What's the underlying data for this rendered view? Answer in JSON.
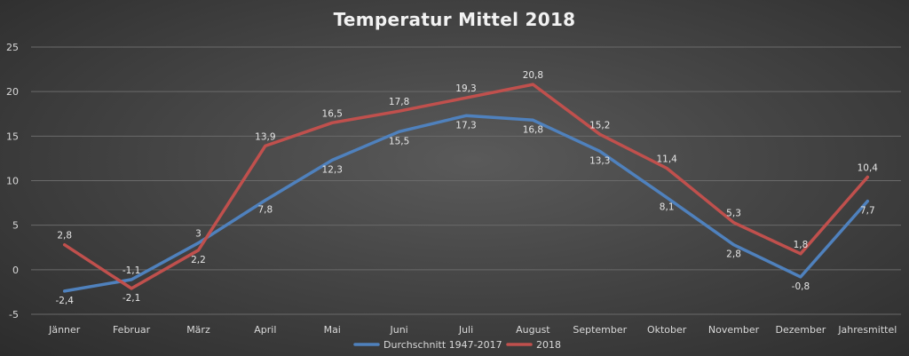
{
  "chart_data": {
    "type": "line",
    "title": "Temperatur Mittel 2018",
    "categories": [
      "Jänner",
      "Februar",
      "März",
      "April",
      "Mai",
      "Juni",
      "Juli",
      "August",
      "September",
      "Oktober",
      "November",
      "Dezember",
      "Jahresmittel"
    ],
    "ylim": [
      -5,
      25
    ],
    "yticks": [
      -5,
      0,
      5,
      10,
      15,
      20,
      25
    ],
    "grid": true,
    "legend_position": "bottom",
    "series": [
      {
        "name": "Durchschnitt 1947-2017",
        "color": "#4f81bd",
        "values": [
          -2.4,
          -1.1,
          3,
          7.8,
          12.3,
          15.5,
          17.3,
          16.8,
          13.3,
          8.1,
          2.8,
          -0.8,
          7.7
        ],
        "labels": [
          "-2,4",
          "-1,1",
          "3",
          "7,8",
          "12,3",
          "15,5",
          "17,3",
          "16,8",
          "13,3",
          "8,1",
          "2,8",
          "-0,8",
          "7,7"
        ]
      },
      {
        "name": "2018",
        "color": "#c0504d",
        "values": [
          2.8,
          -2.1,
          2.2,
          13.9,
          16.5,
          17.8,
          19.3,
          20.8,
          15.2,
          11.4,
          5.3,
          1.8,
          10.4
        ],
        "labels": [
          "2,8",
          "-2,1",
          "2,2",
          "13,9",
          "16,5",
          "17,8",
          "19,3",
          "20,8",
          "15,2",
          "11,4",
          "5,3",
          "1,8",
          "10,4"
        ]
      }
    ]
  }
}
